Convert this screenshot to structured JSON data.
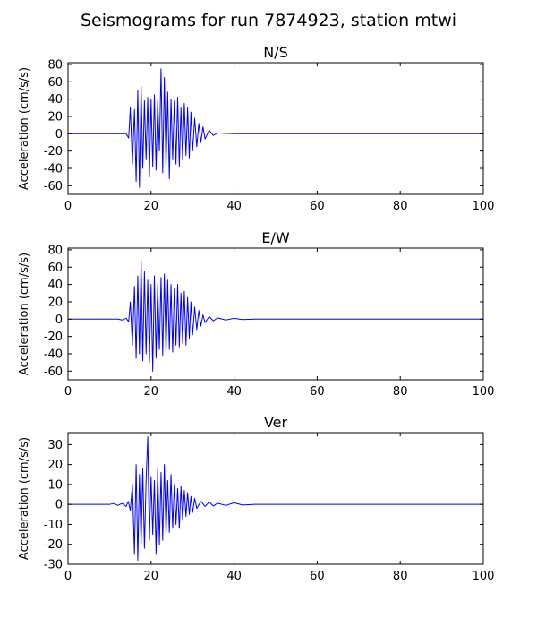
{
  "figure": {
    "title": "Seismograms for run 7874923, station mtwi"
  },
  "chart_data": [
    {
      "type": "line",
      "title": "N/S",
      "xlabel": "",
      "ylabel": "Acceleration (cm/s/s)",
      "xlim": [
        0,
        100
      ],
      "ylim": [
        -70,
        82
      ],
      "xticks": [
        0,
        20,
        40,
        60,
        80,
        100
      ],
      "yticks": [
        -60,
        -40,
        -20,
        0,
        20,
        40,
        60,
        80
      ],
      "grid": false,
      "line_color": "#0000ff",
      "series": [
        {
          "x": [
            0,
            14,
            14.6,
            15,
            15.5,
            16,
            16.4,
            16.8,
            17.2,
            17.6,
            18,
            18.4,
            18.8,
            19.2,
            19.6,
            20,
            20.4,
            20.8,
            21.2,
            21.6,
            22,
            22.4,
            22.8,
            23.2,
            23.6,
            24,
            24.4,
            24.8,
            25.2,
            25.6,
            26,
            26.4,
            26.8,
            27.2,
            27.6,
            28,
            28.4,
            28.8,
            29.2,
            29.6,
            30,
            30.5,
            31,
            31.5,
            32,
            32.5,
            33,
            34,
            35,
            36,
            38,
            40,
            100
          ],
          "y": [
            0,
            0,
            -5,
            30,
            -35,
            28,
            -55,
            50,
            -62,
            55,
            -40,
            38,
            -30,
            42,
            -50,
            40,
            -38,
            45,
            -42,
            38,
            -20,
            75,
            -45,
            65,
            -40,
            48,
            -52,
            40,
            -30,
            38,
            -35,
            42,
            -38,
            30,
            -30,
            35,
            -25,
            30,
            -28,
            25,
            -20,
            18,
            -15,
            12,
            -10,
            8,
            -6,
            4,
            -2,
            1,
            0.5,
            0,
            0
          ]
        }
      ]
    },
    {
      "type": "line",
      "title": "E/W",
      "xlabel": "",
      "ylabel": "Acceleration (cm/s/s)",
      "xlim": [
        0,
        100
      ],
      "ylim": [
        -70,
        82
      ],
      "xticks": [
        0,
        20,
        40,
        60,
        80,
        100
      ],
      "yticks": [
        -60,
        -40,
        -20,
        0,
        20,
        40,
        60,
        80
      ],
      "grid": false,
      "line_color": "#0000ff",
      "series": [
        {
          "x": [
            0,
            12,
            13,
            14,
            14.6,
            15,
            15.5,
            16,
            16.4,
            16.8,
            17.2,
            17.6,
            18,
            18.4,
            18.8,
            19.2,
            19.6,
            20,
            20.4,
            20.8,
            21.2,
            21.6,
            22,
            22.4,
            22.8,
            23.2,
            23.6,
            24,
            24.4,
            24.8,
            25.2,
            25.6,
            26,
            26.4,
            26.8,
            27.2,
            27.6,
            28,
            28.4,
            28.8,
            29.2,
            29.6,
            30,
            30.5,
            31,
            31.5,
            32,
            32.5,
            33,
            34,
            35,
            36,
            38,
            40,
            42,
            45,
            100
          ],
          "y": [
            0,
            0,
            -1,
            1,
            -3,
            20,
            -30,
            38,
            -45,
            50,
            -40,
            68,
            -48,
            55,
            -40,
            45,
            -50,
            40,
            -60,
            50,
            -45,
            40,
            -35,
            48,
            -42,
            52,
            -40,
            45,
            -35,
            40,
            -38,
            35,
            -30,
            40,
            -32,
            30,
            -28,
            32,
            -30,
            25,
            -22,
            20,
            -18,
            14,
            -12,
            10,
            -8,
            5,
            -4,
            3,
            -2,
            1.5,
            -1,
            1,
            -0.5,
            0,
            0
          ]
        }
      ]
    },
    {
      "type": "line",
      "title": "Ver",
      "xlabel": "",
      "ylabel": "Acceleration (cm/s/s)",
      "xlim": [
        0,
        100
      ],
      "ylim": [
        -30,
        36
      ],
      "xticks": [
        0,
        20,
        40,
        60,
        80,
        100
      ],
      "yticks": [
        -30,
        -20,
        -10,
        0,
        10,
        20,
        30
      ],
      "grid": false,
      "line_color": "#0000ff",
      "series": [
        {
          "x": [
            0,
            10,
            11,
            12,
            13,
            14,
            14.5,
            15,
            15.5,
            16,
            16.4,
            16.8,
            17.2,
            17.6,
            18,
            18.4,
            18.8,
            19.2,
            19.6,
            20,
            20.4,
            20.8,
            21.2,
            21.6,
            22,
            22.4,
            22.8,
            23.2,
            23.6,
            24,
            24.4,
            24.8,
            25.2,
            25.6,
            26,
            26.4,
            26.8,
            27.2,
            27.6,
            28,
            28.4,
            28.8,
            29.2,
            29.6,
            30,
            30.5,
            31,
            32,
            33,
            34,
            35,
            36,
            38,
            40,
            42,
            45,
            100
          ],
          "y": [
            0,
            0,
            0.5,
            -0.5,
            0.5,
            -1,
            1.5,
            -3,
            10,
            -25,
            20,
            -28,
            15,
            -20,
            18,
            -22,
            12,
            34,
            -18,
            14,
            -15,
            12,
            -25,
            18,
            -20,
            16,
            -18,
            20,
            -15,
            12,
            -14,
            15,
            -12,
            10,
            -10,
            8,
            -12,
            9,
            -8,
            7,
            -6,
            6,
            -5,
            4,
            -4,
            3,
            -2,
            1.5,
            -1,
            1.2,
            -0.8,
            0.6,
            -0.5,
            0.8,
            -0.3,
            0,
            0
          ]
        }
      ]
    }
  ]
}
